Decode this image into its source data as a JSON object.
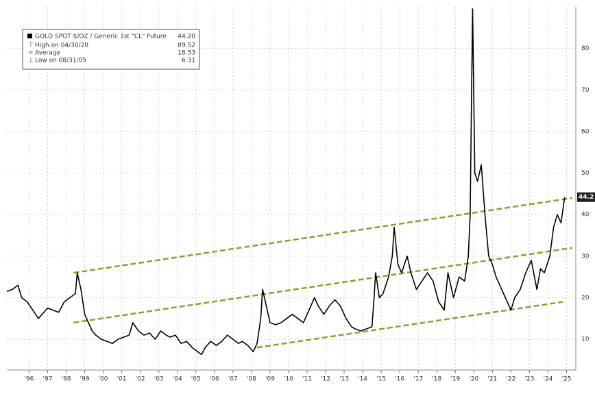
{
  "chart_data": {
    "type": "line",
    "x": [
      1995.2,
      1995.5,
      1995.8,
      1996.0,
      1996.3,
      1996.6,
      1996.9,
      1997.1,
      1997.4,
      1997.7,
      1998.0,
      1998.3,
      1998.6,
      1998.9,
      1999.0,
      1999.2,
      1999.4,
      1999.6,
      1999.8,
      2000.0,
      2000.3,
      2000.6,
      2000.9,
      2001.2,
      2001.5,
      2001.8,
      2002.0,
      2002.3,
      2002.6,
      2002.9,
      2003.2,
      2003.5,
      2003.8,
      2004.0,
      2004.3,
      2004.6,
      2004.9,
      2005.2,
      2005.5,
      2005.7,
      2005.9,
      2006.2,
      2006.5,
      2006.8,
      2007.1,
      2007.4,
      2007.7,
      2007.9,
      2008.2,
      2008.5,
      2008.7,
      2008.9,
      2009.0,
      2009.2,
      2009.4,
      2009.7,
      2010.0,
      2010.3,
      2010.6,
      2010.9,
      2011.2,
      2011.5,
      2011.8,
      2012.0,
      2012.3,
      2012.6,
      2012.9,
      2013.2,
      2013.5,
      2013.8,
      2014.0,
      2014.3,
      2014.6,
      2014.9,
      2015.0,
      2015.1,
      2015.3,
      2015.5,
      2015.8,
      2016.0,
      2016.1,
      2016.3,
      2016.5,
      2016.8,
      2017.0,
      2017.3,
      2017.6,
      2017.9,
      2018.2,
      2018.5,
      2018.8,
      2019.0,
      2019.3,
      2019.6,
      2019.9,
      2020.1,
      2020.2,
      2020.33,
      2020.45,
      2020.6,
      2020.8,
      2021.0,
      2021.2,
      2021.4,
      2021.6,
      2021.9,
      2022.2,
      2022.4,
      2022.6,
      2022.9,
      2023.2,
      2023.5,
      2023.8,
      2024.0,
      2024.2,
      2024.5,
      2024.7,
      2024.9,
      2025.1,
      2025.3
    ],
    "series": [
      {
        "name": "GOLD SPOT $/OZ / Generic 1st \"CL\" Future",
        "color": "#000000",
        "values": [
          21.5,
          22,
          23,
          20,
          19,
          17,
          15,
          16,
          17.5,
          17,
          16.5,
          19,
          20,
          21,
          26,
          22,
          16,
          14,
          12,
          11,
          10,
          9.5,
          9,
          10,
          10.5,
          11,
          14,
          12,
          11,
          11.5,
          10,
          12,
          11,
          10.5,
          11,
          9,
          9.5,
          8,
          7,
          6.31,
          8,
          9.5,
          8.5,
          9.5,
          11,
          10,
          9,
          9.5,
          8.5,
          7,
          9,
          15,
          22,
          18,
          14,
          13.5,
          14,
          15,
          16,
          15,
          14,
          17,
          20,
          18,
          16,
          18,
          19.5,
          18,
          15,
          13,
          12.5,
          12,
          12.5,
          13,
          19,
          26,
          20,
          21,
          25,
          30,
          37,
          28,
          26,
          30,
          26,
          22,
          24,
          26,
          24,
          19,
          17,
          26,
          20,
          25,
          24,
          30,
          40,
          89.52,
          50,
          48,
          52,
          40,
          30,
          28,
          25,
          22,
          19,
          17,
          20,
          22,
          26,
          29,
          22,
          27,
          26,
          30,
          37,
          40,
          38,
          44.2
        ]
      }
    ],
    "legend": {
      "value": "44.20",
      "stats": [
        {
          "label": "High on 04/30/20",
          "value": "89.52"
        },
        {
          "label": "Average",
          "value": "18.53"
        },
        {
          "label": "Low on 08/31/05",
          "value": "6.31"
        }
      ]
    },
    "trend_lines": [
      {
        "color": "#7aa82a",
        "x": [
          1998.8,
          2025.7
        ],
        "values": [
          26,
          44
        ]
      },
      {
        "color": "#7aa82a",
        "x": [
          1998.8,
          2025.7
        ],
        "values": [
          14,
          32
        ]
      },
      {
        "color": "#7aa82a",
        "x": [
          2008.7,
          2025.2
        ],
        "values": [
          8,
          19
        ]
      }
    ],
    "xlim": [
      1995.2,
      2025.9
    ],
    "ylim": [
      2.6,
      90
    ],
    "yticks": [
      10,
      20,
      30,
      40,
      50,
      60,
      70,
      80
    ],
    "xticks": [
      {
        "value": 1996.4,
        "label": "'96"
      },
      {
        "value": 1997.4,
        "label": "'97"
      },
      {
        "value": 1998.4,
        "label": "'98"
      },
      {
        "value": 1999.4,
        "label": "'99"
      },
      {
        "value": 2000.4,
        "label": "'00"
      },
      {
        "value": 2001.4,
        "label": "'01"
      },
      {
        "value": 2002.4,
        "label": "'02"
      },
      {
        "value": 2003.4,
        "label": "'03"
      },
      {
        "value": 2004.4,
        "label": "'04"
      },
      {
        "value": 2005.4,
        "label": "'05"
      },
      {
        "value": 2006.4,
        "label": "'06"
      },
      {
        "value": 2007.4,
        "label": "'07"
      },
      {
        "value": 2008.4,
        "label": "'08"
      },
      {
        "value": 2009.4,
        "label": "'09"
      },
      {
        "value": 2010.4,
        "label": "'10"
      },
      {
        "value": 2011.4,
        "label": "'11"
      },
      {
        "value": 2012.4,
        "label": "'12"
      },
      {
        "value": 2013.4,
        "label": "'13"
      },
      {
        "value": 2014.4,
        "label": "'14"
      },
      {
        "value": 2015.4,
        "label": "'15"
      },
      {
        "value": 2016.4,
        "label": "'16"
      },
      {
        "value": 2017.4,
        "label": "'17"
      },
      {
        "value": 2018.4,
        "label": "'18"
      },
      {
        "value": 2019.4,
        "label": "'19"
      },
      {
        "value": 2020.4,
        "label": "'20"
      },
      {
        "value": 2021.4,
        "label": "'21"
      },
      {
        "value": 2022.4,
        "label": "'22"
      },
      {
        "value": 2023.4,
        "label": "'23"
      },
      {
        "value": 2024.4,
        "label": "'24"
      },
      {
        "value": 2025.4,
        "label": "'25"
      }
    ],
    "grid": true
  }
}
